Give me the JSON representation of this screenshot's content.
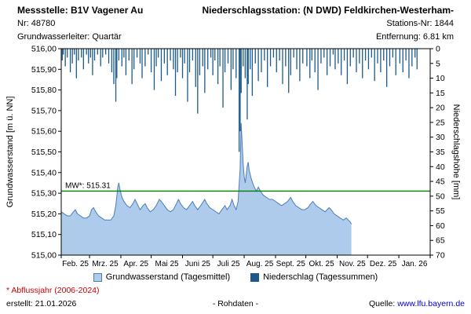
{
  "header": {
    "left": {
      "title": "Messstelle: B1V Vagener Au",
      "line2": "Nr: 48780",
      "line3": "Grundwasserleiter: Quartär"
    },
    "right": {
      "title": "Niederschlagsstation: (N DWD) Feldkirchen-Westerham-",
      "line2": "Stations-Nr: 1844",
      "line3": "Entfernung: 6.81 km"
    }
  },
  "chart_data": {
    "type": "combo-area-bar",
    "left_axis": {
      "label": "Grundwasserstand [m ü. NN]",
      "min": 515.0,
      "max": 516.0,
      "ticks": [
        "515,00",
        "515,10",
        "515,20",
        "515,30",
        "515,40",
        "515,50",
        "515,60",
        "515,70",
        "515,80",
        "515,90",
        "516,00"
      ]
    },
    "right_axis": {
      "label": "Niederschlagshöhe [mm]",
      "min": 0,
      "max": 70,
      "inverted_from_top": true,
      "ticks": [
        "0",
        "5",
        "10",
        "15",
        "20",
        "25",
        "30",
        "35",
        "40",
        "45",
        "50",
        "55",
        "60",
        "65",
        "70"
      ]
    },
    "x_axis": {
      "months": [
        "Feb. 25",
        "Mrz. 25",
        "Apr. 25",
        "Mai 25",
        "Juni 25",
        "Juli 25",
        "Aug. 25",
        "Sept. 25",
        "Okt. 25",
        "Nov. 25",
        "Dez. 25",
        "Jan. 26"
      ],
      "month_starts": [
        0,
        28,
        59,
        89,
        120,
        150,
        181,
        212,
        242,
        273,
        303,
        334
      ],
      "days_total": 365
    },
    "mean_line": {
      "label": "MW*: 515.31",
      "value": 515.31,
      "color": "#008000"
    },
    "series": [
      {
        "name": "Grundwasserstand (Tagesmittel)",
        "type": "area",
        "unit": "m ü. NN",
        "fill": "#AECBEC",
        "line": "#4A7EBB",
        "points": [
          [
            0,
            515.21
          ],
          [
            3,
            515.2
          ],
          [
            6,
            515.19
          ],
          [
            9,
            515.19
          ],
          [
            12,
            515.21
          ],
          [
            14,
            515.22
          ],
          [
            16,
            515.2
          ],
          [
            19,
            515.19
          ],
          [
            22,
            515.18
          ],
          [
            25,
            515.18
          ],
          [
            28,
            515.19
          ],
          [
            30,
            515.22
          ],
          [
            32,
            515.23
          ],
          [
            34,
            515.21
          ],
          [
            37,
            515.19
          ],
          [
            40,
            515.18
          ],
          [
            43,
            515.17
          ],
          [
            46,
            515.17
          ],
          [
            49,
            515.17
          ],
          [
            52,
            515.19
          ],
          [
            54,
            515.24
          ],
          [
            56,
            515.33
          ],
          [
            57,
            515.35
          ],
          [
            58,
            515.32
          ],
          [
            60,
            515.28
          ],
          [
            62,
            515.26
          ],
          [
            65,
            515.24
          ],
          [
            68,
            515.23
          ],
          [
            71,
            515.25
          ],
          [
            73,
            515.27
          ],
          [
            75,
            515.25
          ],
          [
            78,
            515.22
          ],
          [
            81,
            515.24
          ],
          [
            83,
            515.25
          ],
          [
            85,
            515.23
          ],
          [
            88,
            515.21
          ],
          [
            91,
            515.22
          ],
          [
            94,
            515.24
          ],
          [
            97,
            515.27
          ],
          [
            99,
            515.26
          ],
          [
            102,
            515.24
          ],
          [
            105,
            515.22
          ],
          [
            108,
            515.21
          ],
          [
            111,
            515.22
          ],
          [
            114,
            515.25
          ],
          [
            116,
            515.27
          ],
          [
            118,
            515.25
          ],
          [
            121,
            515.23
          ],
          [
            124,
            515.22
          ],
          [
            127,
            515.24
          ],
          [
            130,
            515.26
          ],
          [
            132,
            515.24
          ],
          [
            135,
            515.22
          ],
          [
            138,
            515.24
          ],
          [
            142,
            515.27
          ],
          [
            144,
            515.25
          ],
          [
            147,
            515.23
          ],
          [
            150,
            515.22
          ],
          [
            153,
            515.21
          ],
          [
            156,
            515.2
          ],
          [
            159,
            515.22
          ],
          [
            162,
            515.24
          ],
          [
            164,
            515.22
          ],
          [
            167,
            515.24
          ],
          [
            169,
            515.27
          ],
          [
            171,
            515.24
          ],
          [
            173,
            515.22
          ],
          [
            175,
            515.26
          ],
          [
            177,
            515.42
          ],
          [
            178,
            515.64
          ],
          [
            179,
            515.54
          ],
          [
            180,
            515.44
          ],
          [
            181,
            515.38
          ],
          [
            182,
            515.35
          ],
          [
            184,
            515.43
          ],
          [
            185,
            515.45
          ],
          [
            186,
            515.41
          ],
          [
            188,
            515.37
          ],
          [
            190,
            515.34
          ],
          [
            193,
            515.31
          ],
          [
            195,
            515.33
          ],
          [
            197,
            515.31
          ],
          [
            200,
            515.29
          ],
          [
            203,
            515.28
          ],
          [
            206,
            515.27
          ],
          [
            209,
            515.27
          ],
          [
            212,
            515.26
          ],
          [
            215,
            515.25
          ],
          [
            218,
            515.24
          ],
          [
            221,
            515.25
          ],
          [
            224,
            515.26
          ],
          [
            227,
            515.28
          ],
          [
            229,
            515.26
          ],
          [
            232,
            515.24
          ],
          [
            235,
            515.23
          ],
          [
            238,
            515.22
          ],
          [
            241,
            515.22
          ],
          [
            244,
            515.23
          ],
          [
            247,
            515.25
          ],
          [
            249,
            515.26
          ],
          [
            252,
            515.24
          ],
          [
            255,
            515.23
          ],
          [
            258,
            515.22
          ],
          [
            261,
            515.21
          ],
          [
            263,
            515.22
          ],
          [
            265,
            515.23
          ],
          [
            267,
            515.22
          ],
          [
            270,
            515.2
          ],
          [
            273,
            515.19
          ],
          [
            276,
            515.18
          ],
          [
            279,
            515.17
          ],
          [
            282,
            515.18
          ],
          [
            284,
            515.17
          ],
          [
            286,
            515.16
          ],
          [
            287,
            515.15
          ]
        ]
      },
      {
        "name": "Niederschlag (Tagessummen)",
        "type": "bars_from_top",
        "unit": "mm",
        "color": "#1B5A8A",
        "points": [
          [
            1,
            4
          ],
          [
            2,
            2
          ],
          [
            4,
            6
          ],
          [
            6,
            3
          ],
          [
            9,
            8
          ],
          [
            11,
            5
          ],
          [
            13,
            2
          ],
          [
            15,
            10
          ],
          [
            17,
            4
          ],
          [
            20,
            3
          ],
          [
            22,
            7
          ],
          [
            25,
            2
          ],
          [
            27,
            5
          ],
          [
            29,
            3
          ],
          [
            31,
            9
          ],
          [
            33,
            4
          ],
          [
            36,
            2
          ],
          [
            39,
            6
          ],
          [
            41,
            3
          ],
          [
            44,
            2
          ],
          [
            47,
            5
          ],
          [
            50,
            8
          ],
          [
            52,
            12
          ],
          [
            54,
            18
          ],
          [
            55,
            10
          ],
          [
            57,
            4
          ],
          [
            60,
            6
          ],
          [
            62,
            3
          ],
          [
            64,
            9
          ],
          [
            67,
            4
          ],
          [
            70,
            12
          ],
          [
            72,
            7
          ],
          [
            75,
            3
          ],
          [
            78,
            5
          ],
          [
            80,
            10
          ],
          [
            83,
            6
          ],
          [
            86,
            2
          ],
          [
            89,
            8
          ],
          [
            92,
            14
          ],
          [
            94,
            6
          ],
          [
            96,
            3
          ],
          [
            99,
            11
          ],
          [
            102,
            5
          ],
          [
            105,
            9
          ],
          [
            108,
            4
          ],
          [
            111,
            7
          ],
          [
            113,
            16
          ],
          [
            115,
            8
          ],
          [
            118,
            3
          ],
          [
            120,
            10
          ],
          [
            122,
            5
          ],
          [
            125,
            18
          ],
          [
            127,
            8
          ],
          [
            130,
            4
          ],
          [
            133,
            13
          ],
          [
            135,
            22
          ],
          [
            137,
            9
          ],
          [
            140,
            6
          ],
          [
            142,
            15
          ],
          [
            145,
            7
          ],
          [
            148,
            3
          ],
          [
            150,
            9
          ],
          [
            152,
            4
          ],
          [
            155,
            12
          ],
          [
            157,
            6
          ],
          [
            160,
            20
          ],
          [
            162,
            8
          ],
          [
            165,
            5
          ],
          [
            168,
            14
          ],
          [
            170,
            7
          ],
          [
            173,
            10
          ],
          [
            176,
            35
          ],
          [
            177,
            28
          ],
          [
            178,
            15
          ],
          [
            180,
            6
          ],
          [
            182,
            10
          ],
          [
            184,
            24
          ],
          [
            185,
            12
          ],
          [
            187,
            7
          ],
          [
            189,
            16
          ],
          [
            192,
            5
          ],
          [
            195,
            11
          ],
          [
            198,
            8
          ],
          [
            201,
            4
          ],
          [
            204,
            13
          ],
          [
            207,
            6
          ],
          [
            210,
            3
          ],
          [
            213,
            8
          ],
          [
            216,
            4
          ],
          [
            219,
            12
          ],
          [
            222,
            6
          ],
          [
            225,
            15
          ],
          [
            227,
            9
          ],
          [
            230,
            3
          ],
          [
            233,
            7
          ],
          [
            236,
            11
          ],
          [
            239,
            5
          ],
          [
            243,
            6
          ],
          [
            246,
            10
          ],
          [
            248,
            4
          ],
          [
            251,
            8
          ],
          [
            254,
            14
          ],
          [
            257,
            5
          ],
          [
            260,
            3
          ],
          [
            263,
            9
          ],
          [
            266,
            6
          ],
          [
            269,
            2
          ],
          [
            271,
            7
          ],
          [
            274,
            5
          ],
          [
            277,
            9
          ],
          [
            280,
            4
          ],
          [
            283,
            12
          ],
          [
            286,
            6
          ],
          [
            289,
            3
          ],
          [
            292,
            8
          ],
          [
            295,
            5
          ],
          [
            298,
            10
          ],
          [
            301,
            4
          ],
          [
            304,
            7
          ],
          [
            307,
            3
          ],
          [
            310,
            11
          ],
          [
            313,
            5
          ],
          [
            316,
            8
          ],
          [
            319,
            4
          ],
          [
            322,
            13
          ],
          [
            325,
            6
          ],
          [
            328,
            3
          ],
          [
            331,
            9
          ],
          [
            335,
            5
          ],
          [
            338,
            8
          ],
          [
            341,
            4
          ],
          [
            344,
            10
          ],
          [
            347,
            6
          ],
          [
            350,
            3
          ],
          [
            352,
            7
          ]
        ]
      }
    ]
  },
  "legend": [
    {
      "label": "Grundwasserstand (Tagesmittel)",
      "color": "#AECBEC",
      "border": "#4A7EBB"
    },
    {
      "label": "Niederschlag (Tagessummen)",
      "color": "#1B5A8A",
      "border": "#1B5A8A"
    }
  ],
  "footer": {
    "footnote": "* Abflussjahr (2006-2024)",
    "created": "erstellt:  21.01.2026",
    "center": "- Rohdaten -",
    "source_label": "Quelle:",
    "source_link": "www.lfu.bayern.de"
  }
}
